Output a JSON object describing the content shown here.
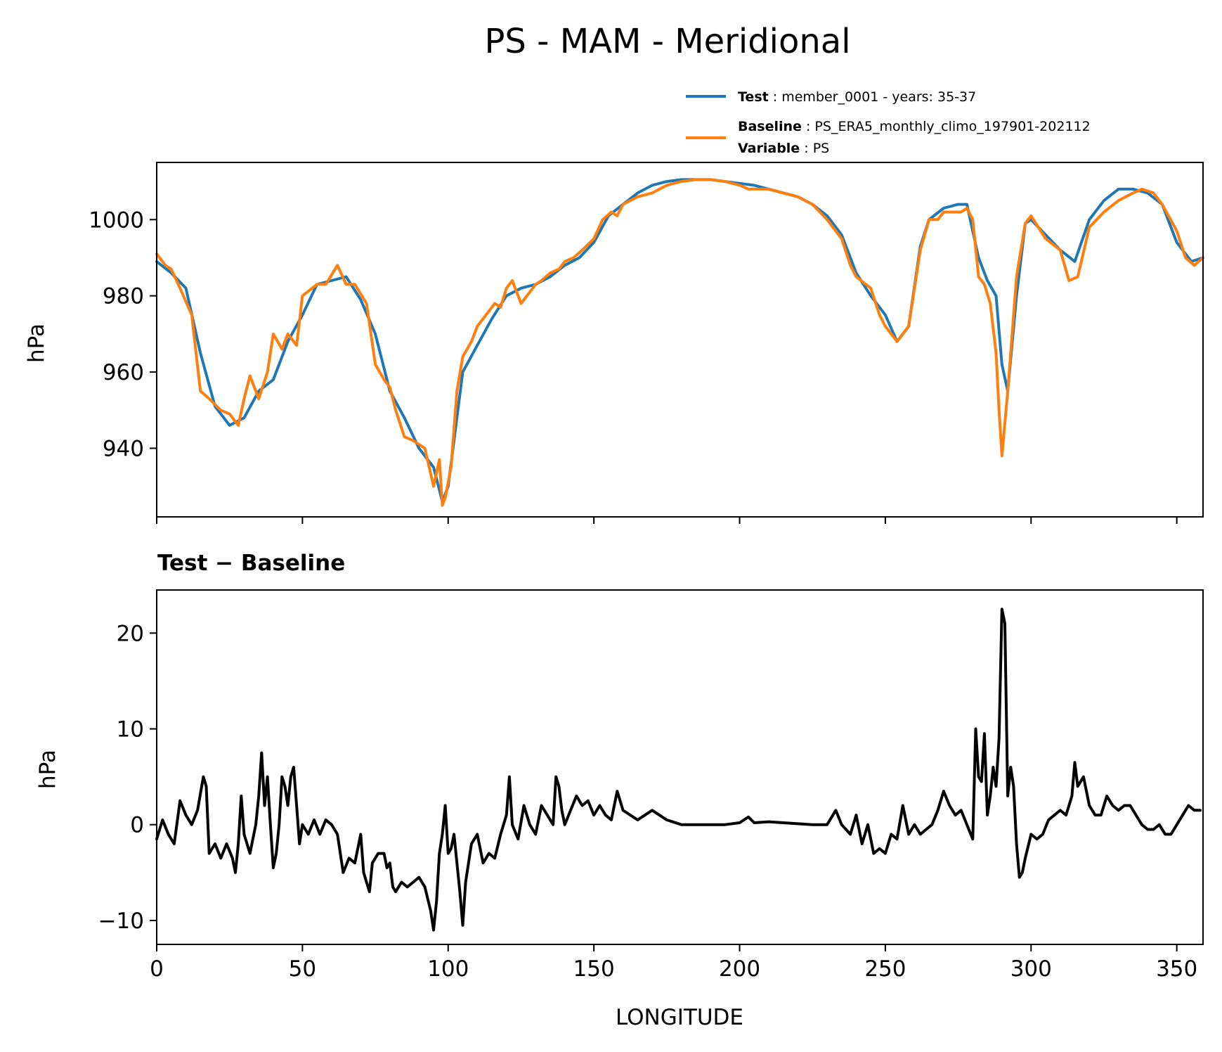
{
  "chart_data": [
    {
      "type": "line",
      "title": "PS - MAM - Meridional",
      "xlabel": "",
      "ylabel": "hPa",
      "xlim": [
        0,
        359
      ],
      "ylim": [
        922,
        1015
      ],
      "xticks": [
        0,
        50,
        100,
        150,
        200,
        250,
        300,
        350
      ],
      "yticks": [
        940,
        960,
        980,
        1000
      ],
      "grid": false,
      "legend": {
        "placement": "top-right, above axes",
        "entries": [
          {
            "series": "Test",
            "key": "Test",
            "text": "member_0001 - years: 35-37"
          },
          {
            "series": "Baseline",
            "key": "Baseline",
            "text": "PS_ERA5_monthly_climo_197901-202112"
          },
          {
            "series": "",
            "key": "Variable",
            "text": "PS"
          }
        ]
      },
      "series": [
        {
          "name": "Test",
          "color": "#1f77b4",
          "x": [
            0,
            5,
            10,
            15,
            20,
            25,
            30,
            35,
            40,
            45,
            50,
            55,
            60,
            65,
            70,
            75,
            80,
            85,
            90,
            95,
            98,
            100,
            105,
            110,
            115,
            120,
            125,
            130,
            135,
            140,
            145,
            150,
            155,
            160,
            165,
            170,
            175,
            180,
            185,
            190,
            195,
            200,
            205,
            210,
            215,
            220,
            225,
            230,
            235,
            240,
            245,
            250,
            254,
            258,
            262,
            265,
            270,
            275,
            278,
            282,
            285,
            288,
            290,
            292,
            295,
            298,
            300,
            305,
            310,
            315,
            320,
            325,
            330,
            335,
            340,
            345,
            350,
            355,
            359
          ],
          "y": [
            989,
            986,
            982,
            965,
            951,
            946,
            948,
            955,
            958,
            968,
            975,
            983,
            984,
            985,
            979,
            970,
            955,
            948,
            940,
            935,
            926,
            930,
            960,
            967,
            974,
            980,
            982,
            983,
            985,
            988,
            990,
            994,
            1001,
            1004,
            1007,
            1009,
            1010,
            1010.5,
            1010.5,
            1010.5,
            1010,
            1009.5,
            1009,
            1008,
            1007,
            1006,
            1004,
            1001,
            996,
            986,
            980,
            975,
            968,
            972,
            993,
            1000,
            1003,
            1004,
            1004,
            990,
            984,
            980,
            962,
            955,
            980,
            999,
            1000,
            996,
            992,
            989,
            1000,
            1005,
            1008,
            1008,
            1007,
            1004,
            994,
            989,
            990
          ]
        },
        {
          "name": "Baseline",
          "color": "#ff7f0e",
          "x": [
            0,
            3,
            5,
            8,
            12,
            15,
            18,
            22,
            25,
            28,
            30,
            32,
            35,
            38,
            40,
            43,
            45,
            48,
            50,
            55,
            58,
            62,
            65,
            68,
            72,
            75,
            78,
            80,
            82,
            85,
            88,
            90,
            92,
            95,
            97,
            98,
            99,
            101,
            103,
            105,
            108,
            110,
            113,
            116,
            118,
            120,
            122,
            125,
            128,
            130,
            132,
            135,
            138,
            140,
            143,
            146,
            150,
            153,
            156,
            158,
            160,
            165,
            170,
            175,
            180,
            185,
            190,
            195,
            200,
            203,
            205,
            210,
            215,
            220,
            225,
            230,
            235,
            238,
            240,
            245,
            248,
            250,
            254,
            258,
            262,
            265,
            268,
            270,
            273,
            276,
            278,
            280,
            282,
            284,
            286,
            288,
            289,
            290,
            292,
            295,
            298,
            300,
            305,
            310,
            313,
            316,
            320,
            325,
            330,
            335,
            338,
            342,
            345,
            350,
            353,
            356,
            359
          ],
          "y": [
            991,
            988,
            987,
            982,
            975,
            955,
            953,
            950,
            949,
            946,
            953,
            959,
            953,
            960,
            970,
            966,
            970,
            967,
            980,
            983,
            983,
            988,
            983,
            983,
            978,
            962,
            958,
            956,
            950,
            943,
            942,
            941,
            940,
            930,
            937,
            925,
            927,
            935,
            955,
            964,
            968,
            972,
            975,
            978,
            977,
            982,
            984,
            978,
            981,
            983,
            984,
            986,
            987,
            989,
            990,
            992,
            995,
            1000,
            1002,
            1001,
            1004,
            1006,
            1007,
            1009,
            1010,
            1010.5,
            1010.5,
            1010,
            1009,
            1008,
            1008,
            1008,
            1007,
            1006,
            1004,
            1000,
            995,
            988,
            985,
            982,
            975,
            972,
            968,
            972,
            992,
            1000,
            1000,
            1002,
            1002,
            1002,
            1003,
            1000,
            985,
            983,
            978,
            965,
            950,
            938,
            955,
            985,
            999,
            1001,
            995,
            992,
            984,
            985,
            998,
            1002,
            1005,
            1007,
            1008,
            1007,
            1004,
            997,
            990,
            988,
            990
          ]
        }
      ]
    },
    {
      "type": "line",
      "title": "Test − Baseline",
      "xlabel": "LONGITUDE",
      "ylabel": "hPa",
      "xlim": [
        0,
        359
      ],
      "ylim": [
        -12.5,
        24.5
      ],
      "xticks": [
        0,
        50,
        100,
        150,
        200,
        250,
        300,
        350
      ],
      "yticks": [
        -10,
        0,
        10,
        20
      ],
      "ytick_labels": [
        "−10",
        "0",
        "10",
        "20"
      ],
      "grid": false,
      "series": [
        {
          "name": "Test − Baseline",
          "color": "#000000",
          "x": [
            0,
            2,
            4,
            6,
            8,
            10,
            12,
            14,
            16,
            17,
            18,
            20,
            22,
            24,
            26,
            27,
            28,
            29,
            30,
            32,
            34,
            35,
            36,
            37,
            38,
            39,
            40,
            41,
            42,
            43,
            44,
            45,
            46,
            47,
            48,
            49,
            50,
            52,
            54,
            56,
            58,
            60,
            62,
            64,
            66,
            68,
            70,
            71,
            72,
            73,
            74,
            76,
            78,
            79,
            80,
            81,
            82,
            84,
            86,
            88,
            90,
            92,
            94,
            95,
            96,
            97,
            98,
            99,
            100,
            101,
            102,
            104,
            105,
            106,
            108,
            110,
            112,
            114,
            116,
            118,
            120,
            121,
            122,
            124,
            126,
            128,
            130,
            132,
            134,
            136,
            137,
            138,
            139,
            140,
            142,
            144,
            146,
            148,
            150,
            152,
            154,
            156,
            158,
            160,
            165,
            170,
            175,
            180,
            185,
            190,
            195,
            200,
            203,
            205,
            210,
            215,
            220,
            225,
            230,
            233,
            235,
            238,
            240,
            242,
            244,
            246,
            248,
            250,
            252,
            254,
            256,
            258,
            260,
            262,
            264,
            266,
            268,
            270,
            272,
            274,
            276,
            278,
            280,
            281,
            282,
            283,
            284,
            285,
            286,
            287,
            288,
            289,
            290,
            291,
            292,
            293,
            294,
            295,
            296,
            297,
            298,
            300,
            302,
            304,
            306,
            308,
            310,
            312,
            314,
            315,
            316,
            318,
            320,
            322,
            324,
            326,
            328,
            330,
            332,
            334,
            336,
            338,
            340,
            342,
            344,
            346,
            348,
            350,
            352,
            354,
            356,
            358
          ],
          "y": [
            -1.5,
            0.5,
            -1,
            -2,
            2.5,
            1,
            0,
            1.5,
            5,
            4,
            -3,
            -2,
            -3.5,
            -2,
            -3.5,
            -5,
            -2,
            3,
            -1,
            -3,
            0,
            3,
            7.5,
            2,
            5,
            0,
            -4.5,
            -3,
            0,
            5,
            4,
            2,
            5,
            6,
            2,
            -2,
            0,
            -1,
            0.5,
            -1,
            0.5,
            0,
            -1,
            -5,
            -3.5,
            -4,
            -1,
            -5,
            -6,
            -7,
            -4,
            -3,
            -3,
            -4.5,
            -4,
            -6.5,
            -7,
            -6,
            -6.5,
            -6,
            -5.5,
            -6.5,
            -9,
            -11,
            -8,
            -3,
            -1,
            2,
            -3,
            -2.5,
            -1,
            -7,
            -10.5,
            -6,
            -2,
            -1,
            -4,
            -3,
            -3.5,
            -1,
            1,
            5,
            0,
            -1.5,
            2,
            0,
            -1,
            2,
            1,
            0,
            5,
            4,
            1.5,
            0,
            1.5,
            3,
            2,
            2.5,
            1,
            2,
            1,
            0.5,
            3.5,
            1.5,
            0.5,
            1.5,
            0.5,
            0,
            0,
            0,
            0,
            0.2,
            0.8,
            0.2,
            0.3,
            0.2,
            0.1,
            0,
            0,
            1.5,
            0,
            -1,
            1,
            -2,
            0,
            -3,
            -2.5,
            -3,
            -1,
            -1.5,
            2,
            -1,
            0,
            -1,
            -0.5,
            0,
            1.5,
            3.5,
            2,
            1,
            1.5,
            0,
            -1.5,
            10,
            5,
            4.5,
            9.5,
            1,
            3,
            6,
            4,
            9,
            22.5,
            21,
            3,
            6,
            4,
            -2,
            -5.5,
            -5,
            -3.5,
            -1,
            -1.5,
            -1,
            0.5,
            1,
            1.5,
            1,
            3,
            6.5,
            4,
            5,
            2,
            1,
            1,
            3,
            2,
            1.5,
            2,
            2,
            1,
            0,
            -0.5,
            -0.5,
            0,
            -1,
            -1,
            0,
            1,
            2,
            1.5,
            1.5
          ]
        }
      ]
    }
  ]
}
